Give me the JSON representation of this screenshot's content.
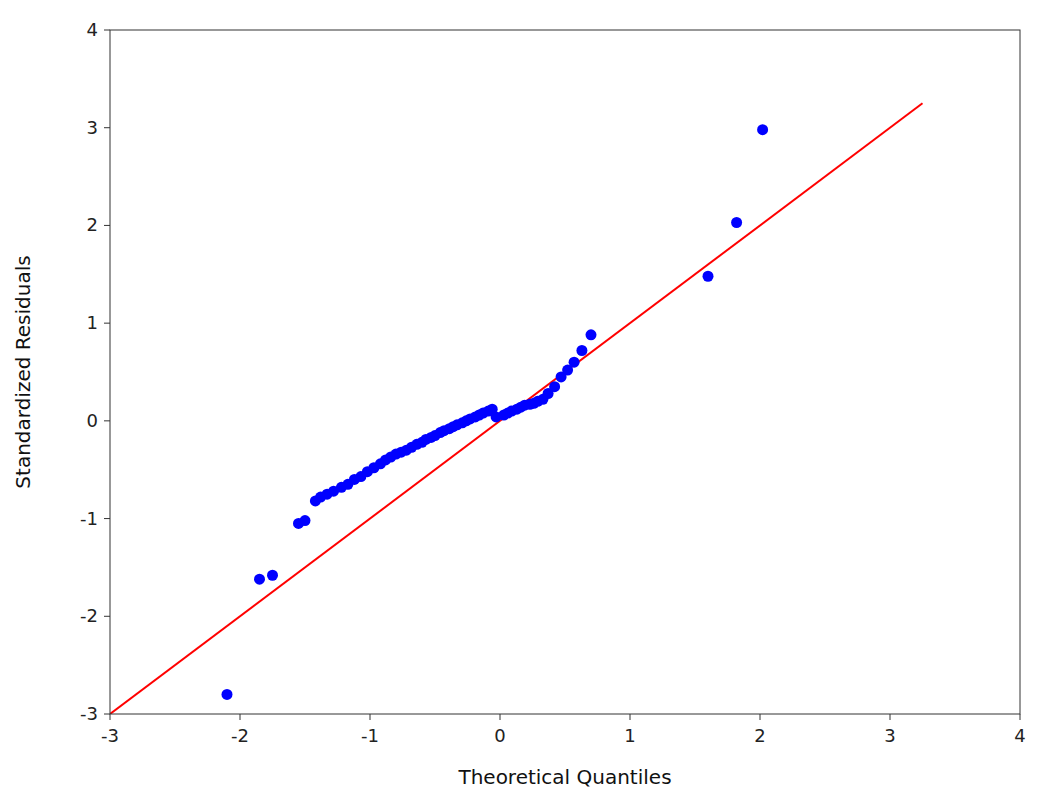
{
  "chart_data": {
    "type": "scatter",
    "xlabel": "Theoretical Quantiles",
    "ylabel": "Standardized Residuals",
    "xlim": [
      -3,
      4
    ],
    "ylim": [
      -3,
      4
    ],
    "xticks": [
      -3,
      -2,
      -1,
      0,
      1,
      2,
      3,
      4
    ],
    "yticks": [
      -3,
      -2,
      -1,
      0,
      1,
      2,
      3,
      4
    ],
    "grid": false,
    "series": [
      {
        "type": "line",
        "color": "#FF0000",
        "x": [
          -3.0,
          3.25
        ],
        "values": [
          -3.0,
          3.25
        ]
      },
      {
        "type": "scatter",
        "color": "#0000FF",
        "x": [
          -2.1,
          -1.85,
          -1.75,
          -1.55,
          -1.5,
          -1.42,
          -1.38,
          -1.33,
          -1.28,
          -1.22,
          -1.17,
          -1.12,
          -1.07,
          -1.02,
          -0.97,
          -0.92,
          -0.88,
          -0.84,
          -0.8,
          -0.76,
          -0.72,
          -0.68,
          -0.64,
          -0.6,
          -0.57,
          -0.53,
          -0.5,
          -0.46,
          -0.43,
          -0.39,
          -0.36,
          -0.33,
          -0.29,
          -0.26,
          -0.23,
          -0.19,
          -0.16,
          -0.13,
          -0.09,
          -0.06,
          -0.03,
          0.03,
          0.06,
          0.09,
          0.13,
          0.16,
          0.19,
          0.23,
          0.26,
          0.29,
          0.33,
          0.37,
          0.42,
          0.47,
          0.52,
          0.57,
          0.63,
          0.7,
          1.6,
          1.82,
          2.02
        ],
        "values": [
          -2.8,
          -1.62,
          -1.58,
          -1.05,
          -1.02,
          -0.82,
          -0.78,
          -0.75,
          -0.72,
          -0.68,
          -0.65,
          -0.6,
          -0.57,
          -0.52,
          -0.48,
          -0.44,
          -0.4,
          -0.37,
          -0.34,
          -0.32,
          -0.3,
          -0.27,
          -0.24,
          -0.22,
          -0.19,
          -0.17,
          -0.15,
          -0.12,
          -0.1,
          -0.08,
          -0.06,
          -0.04,
          -0.02,
          0.0,
          0.02,
          0.04,
          0.06,
          0.08,
          0.1,
          0.12,
          0.04,
          0.06,
          0.08,
          0.1,
          0.12,
          0.14,
          0.16,
          0.17,
          0.18,
          0.2,
          0.22,
          0.28,
          0.35,
          0.45,
          0.52,
          0.6,
          0.72,
          0.88,
          1.48,
          2.03,
          2.98
        ]
      }
    ]
  }
}
